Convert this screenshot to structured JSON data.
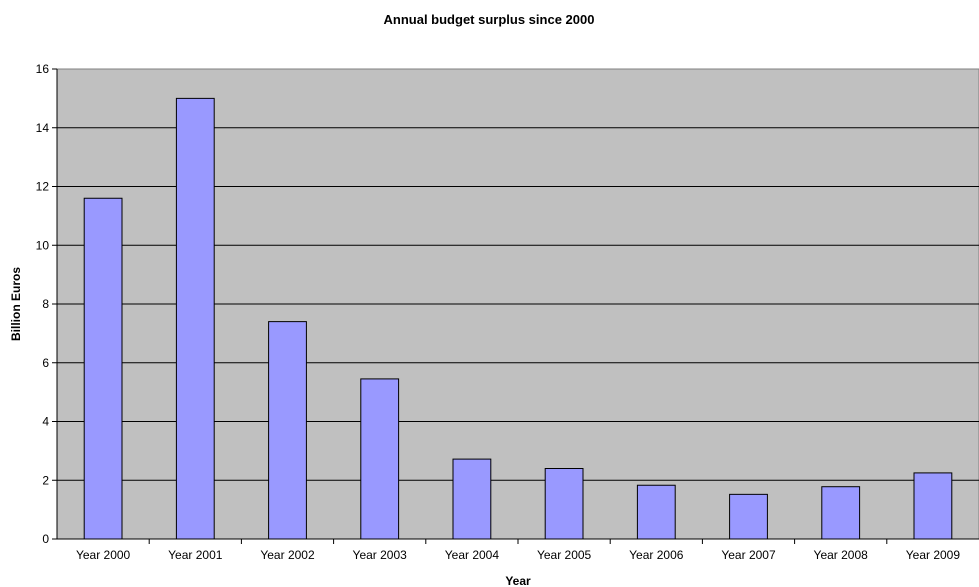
{
  "chart_data": {
    "type": "bar",
    "title": "Annual budget surplus since 2000",
    "xlabel": "Year",
    "ylabel": "Billion Euros",
    "categories": [
      "Year 2000",
      "Year 2001",
      "Year 2002",
      "Year 2003",
      "Year 2004",
      "Year 2005",
      "Year 2006",
      "Year 2007",
      "Year 2008",
      "Year 2009"
    ],
    "values": [
      11.6,
      15.0,
      7.4,
      5.45,
      2.72,
      2.4,
      1.83,
      1.52,
      1.78,
      2.25
    ],
    "ylim": [
      0,
      16
    ],
    "yticks": [
      "0",
      "2",
      "4",
      "6",
      "8",
      "10",
      "12",
      "14",
      "16"
    ],
    "grid": true,
    "legend": "none",
    "colors": {
      "bar_fill": "#9999ff",
      "bar_stroke": "#000000",
      "plot_background": "#c0c0c0",
      "gridline": "#000000"
    }
  }
}
